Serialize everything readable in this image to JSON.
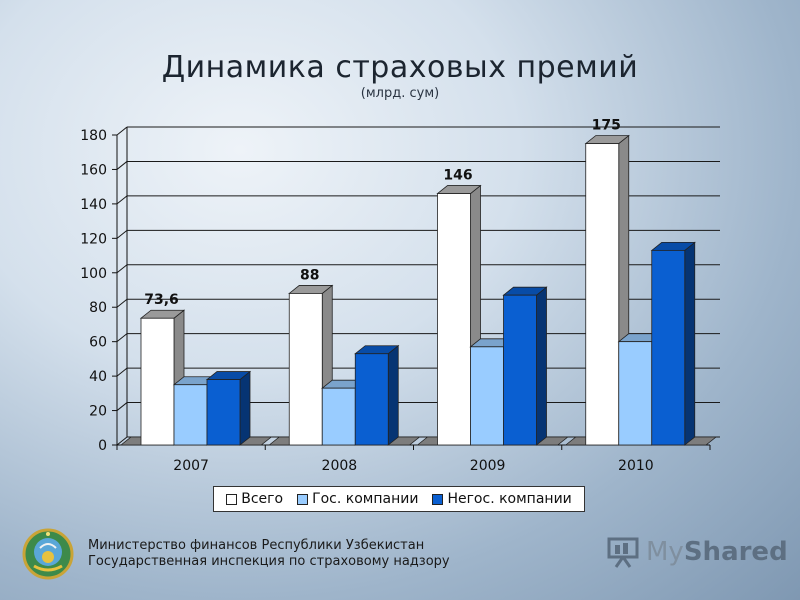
{
  "chart_data": {
    "type": "bar",
    "title": "Динамика страховых премий",
    "subtitle": "(млрд. сум)",
    "categories": [
      "2007",
      "2008",
      "2009",
      "2010"
    ],
    "series": [
      {
        "name": "Всего",
        "values": [
          73.6,
          88,
          146,
          175
        ],
        "color": "#ffffff"
      },
      {
        "name": "Гос. компании",
        "values": [
          35,
          33,
          57,
          60
        ],
        "color": "#99ccff"
      },
      {
        "name": "Негос. компании",
        "values": [
          38,
          53,
          87,
          113
        ],
        "color": "#0a5fd1"
      }
    ],
    "data_labels": [
      "73,6",
      "88",
      "146",
      "175"
    ],
    "yticks": [
      "0",
      "20",
      "40",
      "60",
      "80",
      "100",
      "120",
      "140",
      "160",
      "180"
    ],
    "ylim": [
      0,
      180
    ],
    "grid": true,
    "legend_position": "bottom"
  },
  "footer": {
    "line1": "Министерство финансов Республики Узбекистан",
    "line2": "Государственная инспекция по страховому надзору"
  },
  "logo": {
    "text_a": "My",
    "text_b": "Shared"
  }
}
